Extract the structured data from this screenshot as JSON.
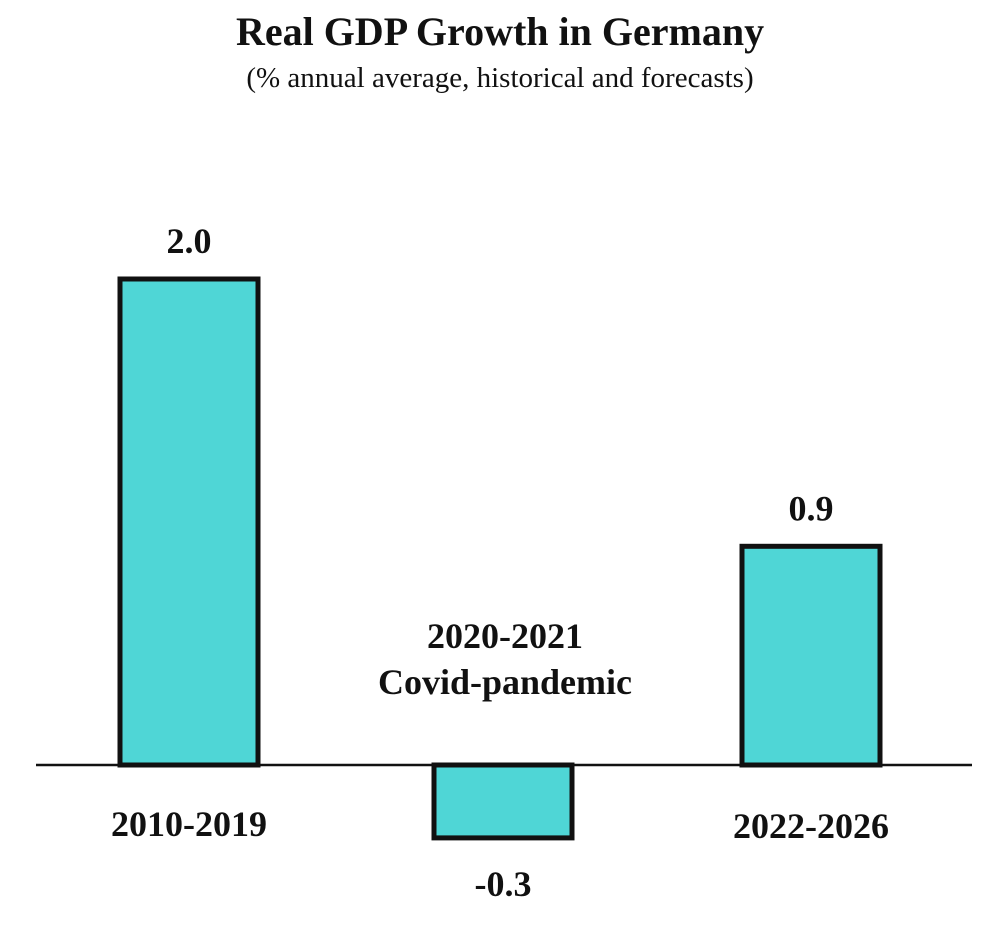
{
  "chart_data": {
    "type": "bar",
    "title": "Real GDP Growth in Germany",
    "subtitle": "(% annual average, historical and forecasts)",
    "categories": [
      "2010-2019",
      "2020-2021",
      "2022-2026"
    ],
    "values": [
      2.0,
      -0.3,
      0.9
    ],
    "value_labels": [
      "2.0",
      "-0.3",
      "0.9"
    ],
    "annotation": [
      "2020-2021",
      "Covid-pandemic"
    ],
    "xlabel": "",
    "ylabel": "",
    "ylim": [
      -0.5,
      2.4
    ],
    "grid": false,
    "bar_color": "#4fd6d6",
    "bar_edge_color": "#111111"
  }
}
